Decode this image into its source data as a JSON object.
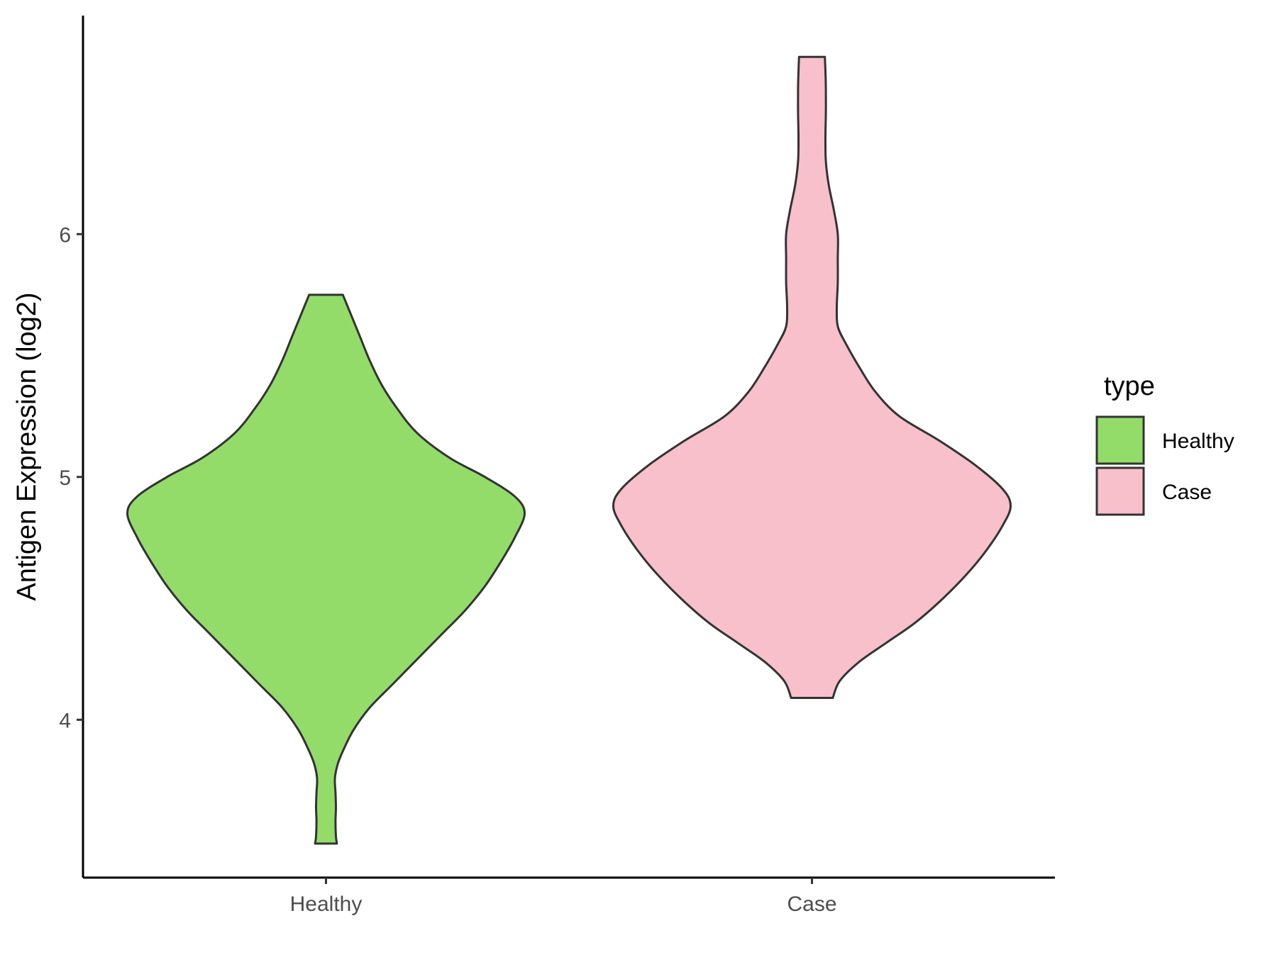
{
  "chart_data": {
    "type": "violin",
    "title": "",
    "xlabel": "",
    "ylabel": "Antigen Expression (log2)",
    "ylim": [
      3.35,
      6.9
    ],
    "y_ticks": [
      4,
      5,
      6
    ],
    "categories": [
      "Healthy",
      "Case"
    ],
    "legend": {
      "title": "type",
      "position": "right",
      "entries": [
        {
          "label": "Healthy",
          "color": "#93dc6a"
        },
        {
          "label": "Case",
          "color": "#f7c0cb"
        }
      ]
    },
    "outline_color": "#333333",
    "series": [
      {
        "category": "Healthy",
        "color": "#93dc6a",
        "min": 3.49,
        "max": 5.75,
        "density_profile": [
          [
            3.49,
            0.055
          ],
          [
            3.52,
            0.05
          ],
          [
            3.58,
            0.048
          ],
          [
            3.64,
            0.05
          ],
          [
            3.7,
            0.048
          ],
          [
            3.76,
            0.045
          ],
          [
            3.82,
            0.06
          ],
          [
            3.88,
            0.09
          ],
          [
            3.96,
            0.14
          ],
          [
            4.05,
            0.22
          ],
          [
            4.15,
            0.34
          ],
          [
            4.25,
            0.46
          ],
          [
            4.35,
            0.58
          ],
          [
            4.45,
            0.7
          ],
          [
            4.55,
            0.8
          ],
          [
            4.65,
            0.88
          ],
          [
            4.75,
            0.95
          ],
          [
            4.85,
            1.0
          ],
          [
            4.92,
            0.95
          ],
          [
            5.0,
            0.8
          ],
          [
            5.08,
            0.62
          ],
          [
            5.18,
            0.46
          ],
          [
            5.28,
            0.36
          ],
          [
            5.38,
            0.28
          ],
          [
            5.48,
            0.22
          ],
          [
            5.58,
            0.17
          ],
          [
            5.66,
            0.13
          ],
          [
            5.75,
            0.085
          ]
        ]
      },
      {
        "category": "Case",
        "color": "#f7c0cb",
        "min": 4.09,
        "max": 6.73,
        "density_profile": [
          [
            4.09,
            0.105
          ],
          [
            4.16,
            0.14
          ],
          [
            4.24,
            0.24
          ],
          [
            4.32,
            0.38
          ],
          [
            4.4,
            0.52
          ],
          [
            4.5,
            0.66
          ],
          [
            4.6,
            0.78
          ],
          [
            4.7,
            0.88
          ],
          [
            4.8,
            0.96
          ],
          [
            4.88,
            1.0
          ],
          [
            4.95,
            0.96
          ],
          [
            5.05,
            0.82
          ],
          [
            5.15,
            0.64
          ],
          [
            5.25,
            0.44
          ],
          [
            5.35,
            0.32
          ],
          [
            5.45,
            0.24
          ],
          [
            5.55,
            0.17
          ],
          [
            5.62,
            0.13
          ],
          [
            5.7,
            0.125
          ],
          [
            5.8,
            0.13
          ],
          [
            5.9,
            0.13
          ],
          [
            6.0,
            0.13
          ],
          [
            6.1,
            0.11
          ],
          [
            6.2,
            0.085
          ],
          [
            6.3,
            0.07
          ],
          [
            6.4,
            0.068
          ],
          [
            6.5,
            0.07
          ],
          [
            6.6,
            0.07
          ],
          [
            6.67,
            0.068
          ],
          [
            6.73,
            0.065
          ]
        ]
      }
    ]
  }
}
